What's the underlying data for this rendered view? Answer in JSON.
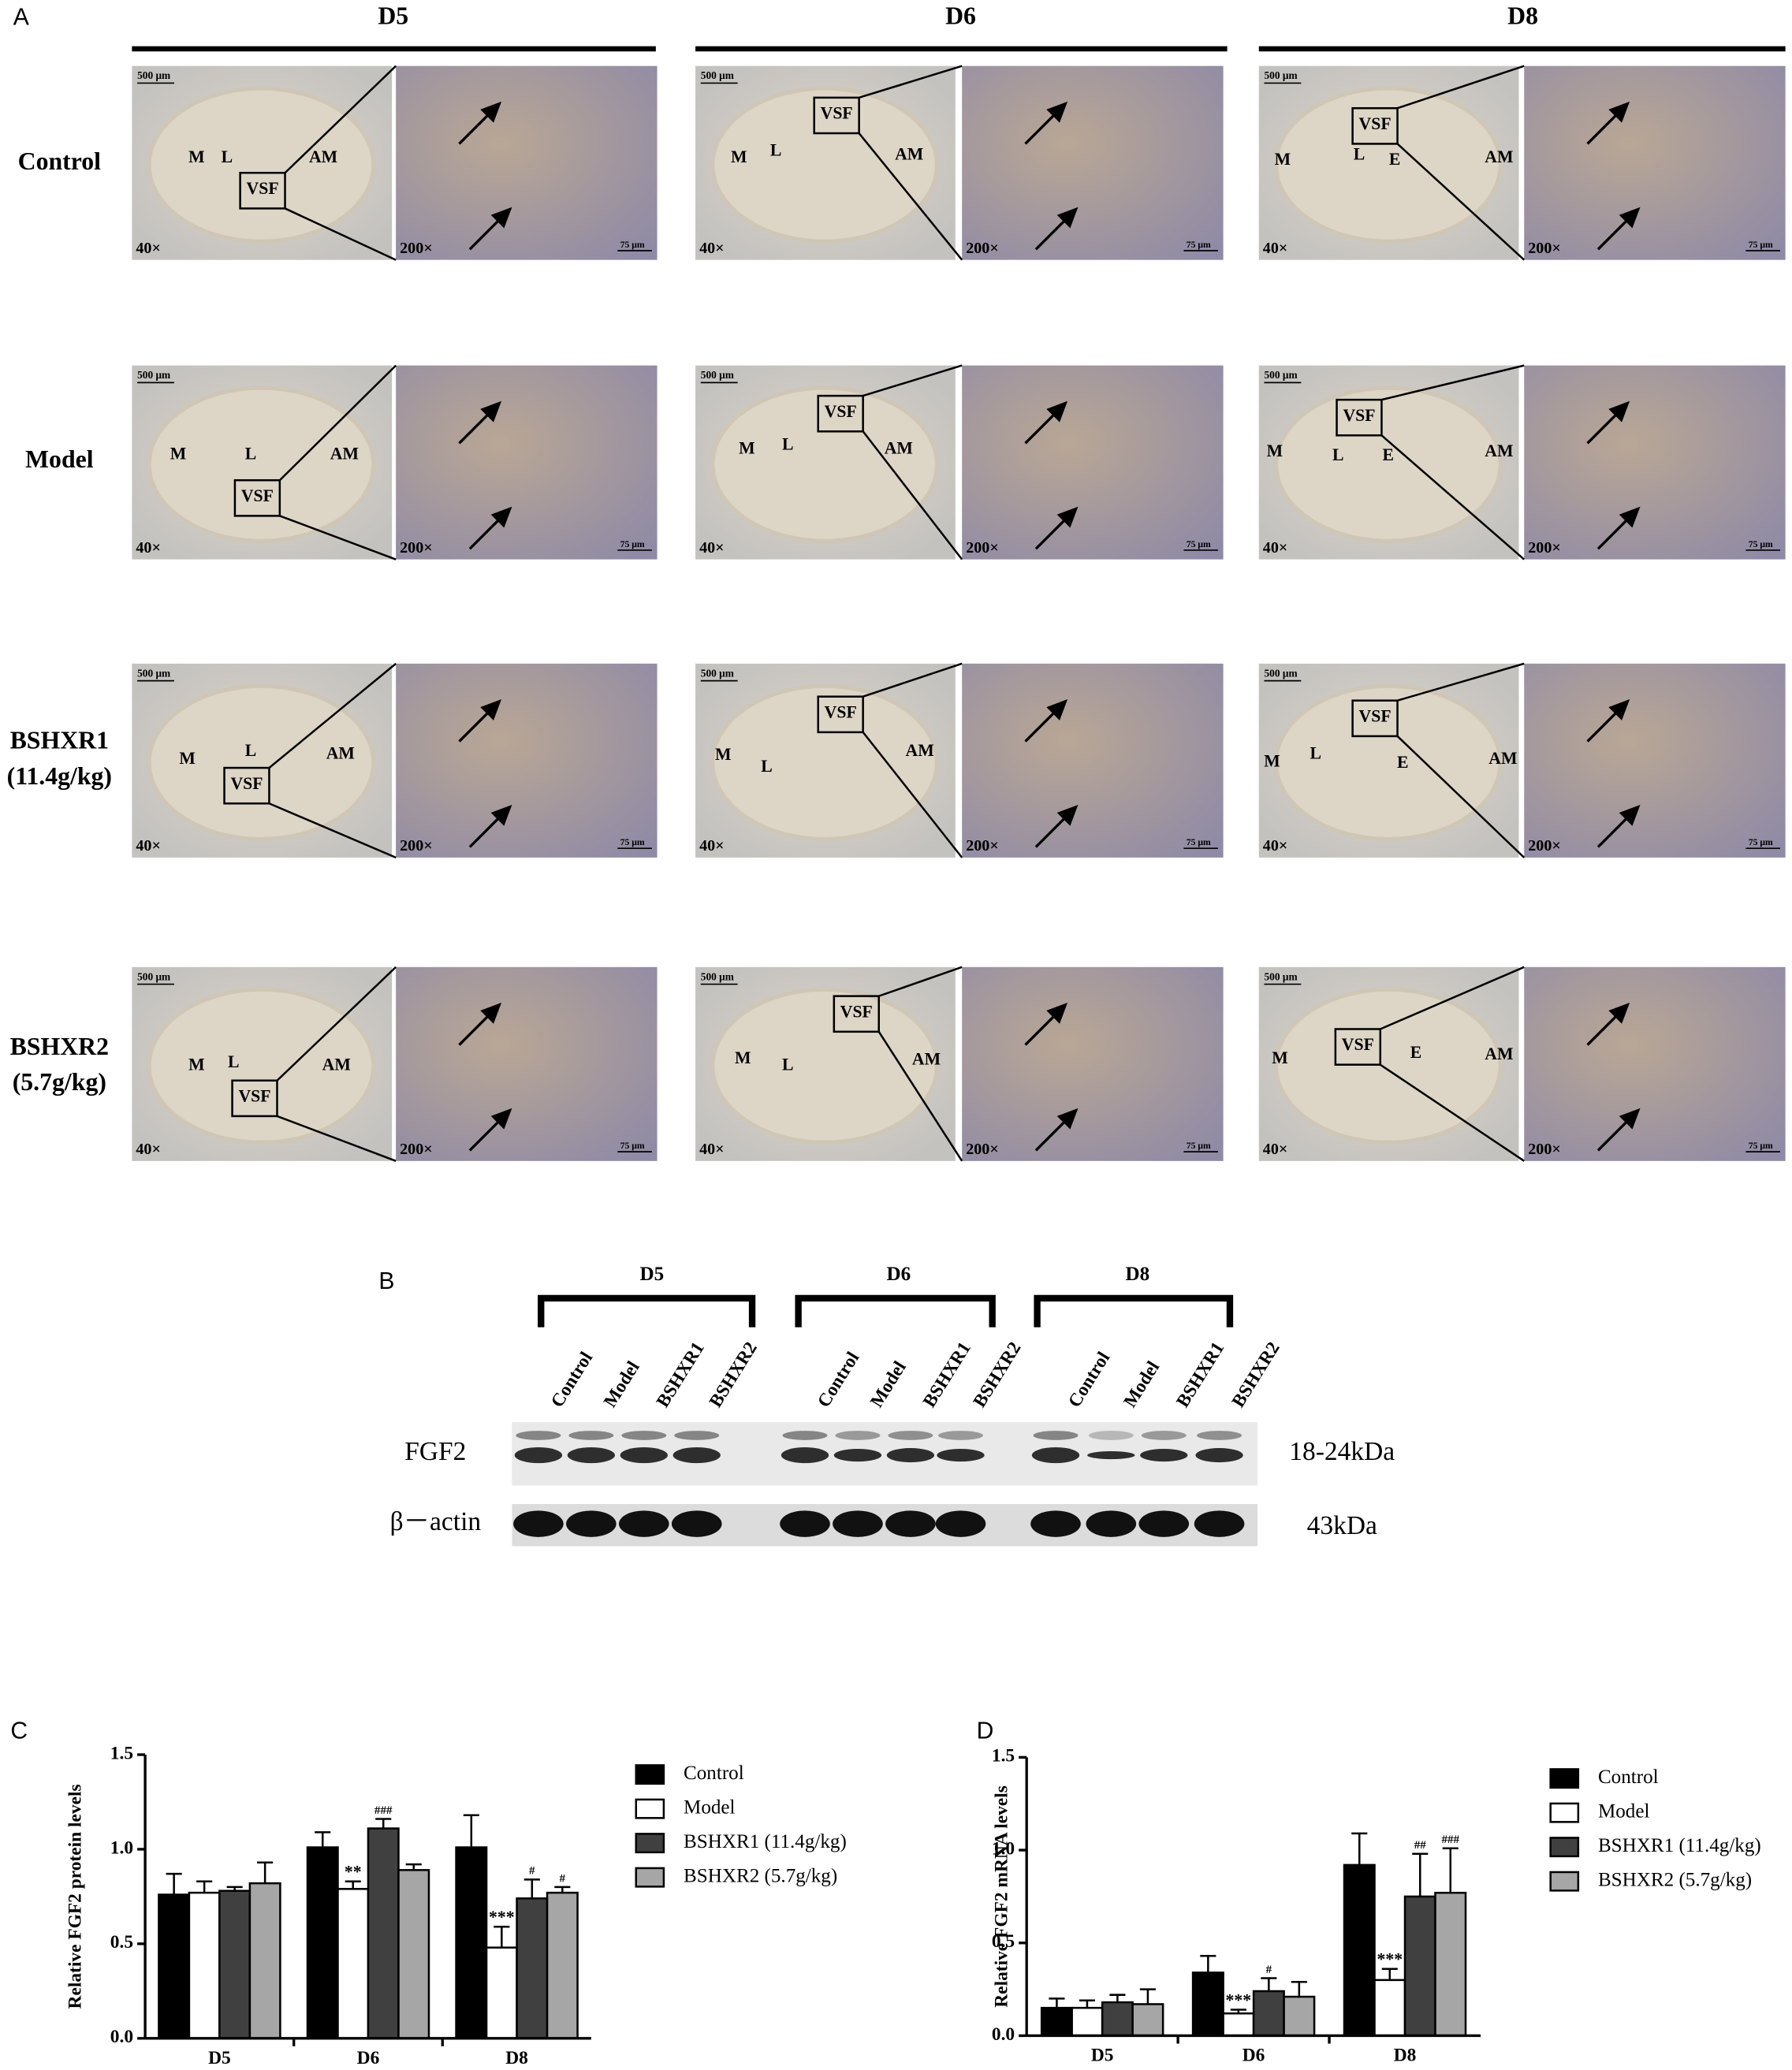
{
  "panel_a": {
    "label": "A",
    "columns": [
      "D5",
      "D6",
      "D8"
    ],
    "rows": [
      [
        "Control"
      ],
      [
        "Model"
      ],
      [
        "BSHXR1",
        "(11.4g/kg)"
      ],
      [
        "BSHXR2",
        "(5.7g/kg)"
      ]
    ],
    "scale_low": "500 μm",
    "scale_high": "75 μm",
    "mag_low": "40×",
    "mag_high": "200×",
    "cells": [
      [
        [
          "M",
          "L",
          "VSF",
          "AM"
        ],
        [
          "VSF",
          "M",
          "L",
          "AM"
        ],
        [
          "VSF",
          "M",
          "L",
          "E",
          "AM"
        ]
      ],
      [
        [
          "M",
          "L",
          "AM",
          "VSF"
        ],
        [
          "VSF",
          "M",
          "L",
          "AM"
        ],
        [
          "VSF",
          "M",
          "L",
          "E",
          "AM"
        ]
      ],
      [
        [
          "M",
          "L",
          "AM",
          "VSF"
        ],
        [
          "VSF",
          "M",
          "L",
          "AM"
        ],
        [
          "VSF",
          "M",
          "L",
          "E",
          "AM"
        ]
      ],
      [
        [
          "M",
          "L",
          "AM",
          "VSF"
        ],
        [
          "VSF",
          "M",
          "L",
          "AM"
        ],
        [
          "VSF",
          "M",
          "E",
          "AM"
        ]
      ]
    ]
  },
  "panel_b": {
    "label": "B",
    "groups": [
      "D5",
      "D6",
      "D8"
    ],
    "lanes": [
      "Control",
      "Model",
      "BSHXR1",
      "BSHXR2"
    ],
    "rows": [
      {
        "name": "FGF2",
        "size": "18-24kDa"
      },
      {
        "name": "β－actin",
        "size": "43kDa"
      }
    ]
  },
  "chart_data": [
    {
      "type": "bar",
      "panel_label": "C",
      "ylabel": "Relative FGF2 protein levels",
      "categories": [
        "D5",
        "D6",
        "D8"
      ],
      "ylim": [
        0,
        1.5
      ],
      "yticks": [
        {
          "value": 0,
          "label": "0.0"
        },
        {
          "value": 0.5,
          "label": "0.5"
        },
        {
          "value": 1,
          "label": "1.0"
        },
        {
          "value": 1.5,
          "label": "1.5"
        }
      ],
      "series": [
        {
          "name": "Control",
          "color": "#000000",
          "values": [
            0.76,
            1.01,
            1.01
          ],
          "errors": [
            0.11,
            0.08,
            0.17
          ]
        },
        {
          "name": "Model",
          "color": "#ffffff",
          "values": [
            0.77,
            0.79,
            0.48
          ],
          "errors": [
            0.06,
            0.04,
            0.11
          ],
          "annotations": [
            null,
            "**",
            "***"
          ]
        },
        {
          "name": "BSHXR1 (11.4g/kg)",
          "color": "#404040",
          "values": [
            0.78,
            1.11,
            0.74
          ],
          "errors": [
            0.02,
            0.05,
            0.1
          ],
          "annotations": [
            null,
            "###",
            "#"
          ]
        },
        {
          "name": "BSHXR2 (5.7g/kg)",
          "color": "#a6a6a6",
          "values": [
            0.82,
            0.89,
            0.77
          ],
          "errors": [
            0.11,
            0.03,
            0.03
          ],
          "annotations": [
            null,
            null,
            "#"
          ]
        }
      ]
    },
    {
      "type": "bar",
      "panel_label": "D",
      "ylabel": "Relative FGF2 mRNA levels",
      "categories": [
        "D5",
        "D6",
        "D8"
      ],
      "ylim": [
        0,
        1.5
      ],
      "yticks": [
        {
          "value": 0,
          "label": "0.0"
        },
        {
          "value": 0.5,
          "label": "0.5"
        },
        {
          "value": 1,
          "label": "1.0"
        },
        {
          "value": 1.5,
          "label": "1.5"
        }
      ],
      "series": [
        {
          "name": "Control",
          "color": "#000000",
          "values": [
            0.15,
            0.34,
            0.92
          ],
          "errors": [
            0.05,
            0.09,
            0.17
          ]
        },
        {
          "name": "Model",
          "color": "#ffffff",
          "values": [
            0.15,
            0.12,
            0.3
          ],
          "errors": [
            0.04,
            0.02,
            0.06
          ],
          "annotations": [
            null,
            "***",
            "***"
          ]
        },
        {
          "name": "BSHXR1 (11.4g/kg)",
          "color": "#404040",
          "values": [
            0.18,
            0.24,
            0.75
          ],
          "errors": [
            0.04,
            0.07,
            0.23
          ],
          "annotations": [
            null,
            "#",
            "##"
          ]
        },
        {
          "name": "BSHXR2 (5.7g/kg)",
          "color": "#a6a6a6",
          "values": [
            0.17,
            0.21,
            0.77
          ],
          "errors": [
            0.08,
            0.08,
            0.24
          ],
          "annotations": [
            null,
            null,
            "###"
          ]
        }
      ]
    }
  ]
}
